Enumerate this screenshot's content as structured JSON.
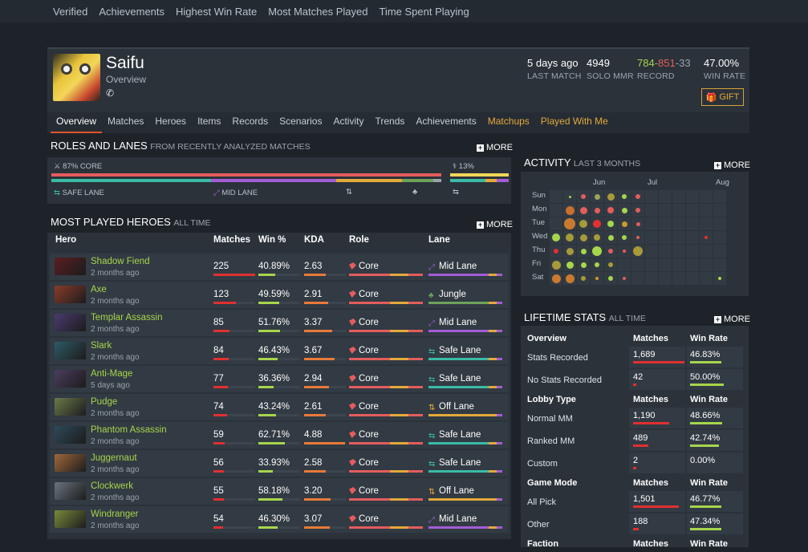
{
  "topnav": [
    "Verified",
    "Achievements",
    "Highest Win Rate",
    "Most Matches Played",
    "Time Spent Playing"
  ],
  "player": {
    "name": "Saifu",
    "subtitle": "Overview",
    "phone_icon": "phone-icon"
  },
  "header_stats": [
    {
      "value": "5 days ago",
      "label": "LAST MATCH"
    },
    {
      "value": "4949",
      "label": "SOLO MMR"
    },
    {
      "value_parts": [
        "784",
        "851",
        "33"
      ],
      "value_sep": "-",
      "label": "RECORD"
    },
    {
      "value": "47.00%",
      "label": "WIN RATE"
    }
  ],
  "gift_label": "GIFT",
  "colors": {
    "win": "#a6d64c",
    "loss": "#e35d5d",
    "draw": "#9aa3ad",
    "gold": "#e3a93b",
    "accent": "#e3542c"
  },
  "tabs": [
    {
      "label": "Overview",
      "state": "active"
    },
    {
      "label": "Matches"
    },
    {
      "label": "Heroes"
    },
    {
      "label": "Items"
    },
    {
      "label": "Records"
    },
    {
      "label": "Scenarios"
    },
    {
      "label": "Activity"
    },
    {
      "label": "Trends"
    },
    {
      "label": "Achievements"
    },
    {
      "label": "Matchups",
      "state": "gold"
    },
    {
      "label": "Played With Me",
      "state": "gold"
    }
  ],
  "roles": {
    "title": "ROLES AND LANES",
    "subtitle": "FROM RECENTLY ANALYZED MATCHES",
    "more": "MORE",
    "core_label": "87% CORE",
    "support_label": "13%",
    "core_share": 0.87,
    "lanes": [
      {
        "label": "SAFE LANE"
      },
      {
        "label": "MID LANE"
      },
      {
        "label": ""
      },
      {
        "label": ""
      }
    ]
  },
  "heroes": {
    "title": "MOST PLAYED HEROES",
    "subtitle": "ALL TIME",
    "more": "MORE",
    "columns": [
      "Hero",
      "Matches",
      "Win %",
      "KDA",
      "Role",
      "Lane"
    ],
    "rows": [
      {
        "name": "Shadow Fiend",
        "ago": "2 months ago",
        "matches": "225",
        "win": "40.89%",
        "kda": "2.63",
        "role": "Core",
        "lane": "Mid Lane",
        "lane_icon": "mid",
        "color": "#5a1e22"
      },
      {
        "name": "Axe",
        "ago": "2 months ago",
        "matches": "123",
        "win": "49.59%",
        "kda": "2.91",
        "role": "Core",
        "lane": "Jungle",
        "lane_icon": "jungle",
        "color": "#8a3b2a"
      },
      {
        "name": "Templar Assassin",
        "ago": "2 months ago",
        "matches": "85",
        "win": "51.76%",
        "kda": "3.37",
        "role": "Core",
        "lane": "Mid Lane",
        "lane_icon": "mid",
        "color": "#4b3a6e"
      },
      {
        "name": "Slark",
        "ago": "2 months ago",
        "matches": "84",
        "win": "46.43%",
        "kda": "3.67",
        "role": "Core",
        "lane": "Safe Lane",
        "lane_icon": "safe",
        "color": "#2e5a66"
      },
      {
        "name": "Anti-Mage",
        "ago": "5 days ago",
        "matches": "77",
        "win": "36.36%",
        "kda": "2.94",
        "role": "Core",
        "lane": "Safe Lane",
        "lane_icon": "safe",
        "color": "#4c3d5e"
      },
      {
        "name": "Pudge",
        "ago": "2 months ago",
        "matches": "74",
        "win": "43.24%",
        "kda": "2.61",
        "role": "Core",
        "lane": "Off Lane",
        "lane_icon": "off",
        "color": "#6b7a4a"
      },
      {
        "name": "Phantom Assassin",
        "ago": "2 months ago",
        "matches": "59",
        "win": "62.71%",
        "kda": "4.88",
        "role": "Core",
        "lane": "Safe Lane",
        "lane_icon": "safe",
        "color": "#2d4a5a"
      },
      {
        "name": "Juggernaut",
        "ago": "2 months ago",
        "matches": "56",
        "win": "33.93%",
        "kda": "2.58",
        "role": "Core",
        "lane": "Safe Lane",
        "lane_icon": "safe",
        "color": "#a0683a"
      },
      {
        "name": "Clockwerk",
        "ago": "2 months ago",
        "matches": "55",
        "win": "58.18%",
        "kda": "3.20",
        "role": "Core",
        "lane": "Off Lane",
        "lane_icon": "off",
        "color": "#6a7480"
      },
      {
        "name": "Windranger",
        "ago": "2 months ago",
        "matches": "54",
        "win": "46.30%",
        "kda": "3.07",
        "role": "Core",
        "lane": "Mid Lane",
        "lane_icon": "mid",
        "color": "#7a8a3a"
      }
    ]
  },
  "activity": {
    "title": "ACTIVITY",
    "subtitle": "LAST 3 MONTHS",
    "more": "MORE",
    "months": [
      "Jun",
      "Jul",
      "Aug"
    ],
    "days": [
      "Sun",
      "Mon",
      "Tue",
      "Wed",
      "Thu",
      "Fri",
      "Sat"
    ]
  },
  "lifetime": {
    "title": "LIFETIME STATS",
    "subtitle": "ALL TIME",
    "more": "MORE",
    "sections": [
      {
        "header": [
          "Overview",
          "Matches",
          "Win Rate"
        ],
        "rows": [
          [
            "Stats Recorded",
            "1,689",
            "46.83%"
          ],
          [
            "No Stats Recorded",
            "42",
            "50.00%"
          ]
        ]
      },
      {
        "header": [
          "Lobby Type",
          "Matches",
          "Win Rate"
        ],
        "rows": [
          [
            "Normal MM",
            "1,190",
            "48.66%"
          ],
          [
            "Ranked MM",
            "489",
            "42.74%"
          ],
          [
            "Custom",
            "2",
            "0.00%"
          ]
        ]
      },
      {
        "header": [
          "Game Mode",
          "Matches",
          "Win Rate"
        ],
        "rows": [
          [
            "All Pick",
            "1,501",
            "46.77%"
          ],
          [
            "Other",
            "188",
            "47.34%"
          ]
        ]
      },
      {
        "header": [
          "Faction",
          "Matches",
          "Win Rate"
        ],
        "rows": []
      }
    ]
  }
}
